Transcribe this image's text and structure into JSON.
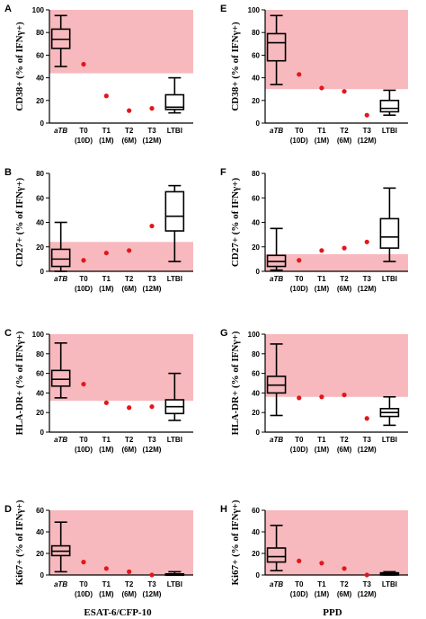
{
  "colors": {
    "band": "#f7b9bd",
    "point": "#e3161b",
    "box": "#000000"
  },
  "chart_data": [
    {
      "panel": "A",
      "type": "box",
      "ylabel": "CD38+ (% of IFNγ+)",
      "ylim": [
        0,
        100
      ],
      "yticks": [
        0,
        20,
        40,
        60,
        80,
        100
      ],
      "categories": [
        "aTB",
        "T0",
        "T1",
        "T2",
        "T3",
        "LTBI"
      ],
      "sublabels": [
        "",
        "(10D)",
        "(1M)",
        "(6M)",
        "(12M)",
        ""
      ],
      "band": [
        44,
        100
      ],
      "boxes": [
        {
          "index": 0,
          "min": 50,
          "q1": 66,
          "median": 74,
          "q3": 83,
          "max": 95
        },
        {
          "index": 5,
          "min": 9,
          "q1": 12,
          "median": 14,
          "q3": 25,
          "max": 40
        }
      ],
      "points": [
        {
          "index": 1,
          "value": 52
        },
        {
          "index": 2,
          "value": 24
        },
        {
          "index": 3,
          "value": 11
        },
        {
          "index": 4,
          "value": 13
        }
      ]
    },
    {
      "panel": "E",
      "type": "box",
      "ylabel": "CD38+ (% of IFNγ+)",
      "ylim": [
        0,
        100
      ],
      "yticks": [
        0,
        20,
        40,
        60,
        80,
        100
      ],
      "categories": [
        "aTB",
        "T0",
        "T1",
        "T2",
        "T3",
        "LTBI"
      ],
      "sublabels": [
        "",
        "(10D)",
        "(1M)",
        "(6M)",
        "(12M)",
        ""
      ],
      "band": [
        30,
        100
      ],
      "boxes": [
        {
          "index": 0,
          "min": 34,
          "q1": 55,
          "median": 71,
          "q3": 79,
          "max": 95
        },
        {
          "index": 5,
          "min": 7,
          "q1": 10,
          "median": 13,
          "q3": 20,
          "max": 29
        }
      ],
      "points": [
        {
          "index": 1,
          "value": 43
        },
        {
          "index": 2,
          "value": 31
        },
        {
          "index": 3,
          "value": 28
        },
        {
          "index": 4,
          "value": 7
        }
      ]
    },
    {
      "panel": "B",
      "type": "box",
      "ylabel": "CD27+ (% of IFNγ+)",
      "ylim": [
        0,
        80
      ],
      "yticks": [
        0,
        20,
        40,
        60,
        80
      ],
      "categories": [
        "aTB",
        "T0",
        "T1",
        "T2",
        "T3",
        "LTBI"
      ],
      "sublabels": [
        "",
        "(10D)",
        "(1M)",
        "(6M)",
        "(12M)",
        ""
      ],
      "band": [
        0,
        24
      ],
      "boxes": [
        {
          "index": 0,
          "min": 0,
          "q1": 4,
          "median": 10,
          "q3": 18,
          "max": 40
        },
        {
          "index": 5,
          "min": 8,
          "q1": 33,
          "median": 45,
          "q3": 65,
          "max": 70
        }
      ],
      "points": [
        {
          "index": 1,
          "value": 9
        },
        {
          "index": 2,
          "value": 15
        },
        {
          "index": 3,
          "value": 17
        },
        {
          "index": 4,
          "value": 37
        }
      ]
    },
    {
      "panel": "F",
      "type": "box",
      "ylabel": "CD27+ (% of IFNγ+)",
      "ylim": [
        0,
        80
      ],
      "yticks": [
        0,
        20,
        40,
        60,
        80
      ],
      "categories": [
        "aTB",
        "T0",
        "T1",
        "T2",
        "T3",
        "LTBI"
      ],
      "sublabels": [
        "",
        "(10D)",
        "(1M)",
        "(6M)",
        "(12M)",
        ""
      ],
      "band": [
        0,
        14
      ],
      "boxes": [
        {
          "index": 0,
          "min": 1,
          "q1": 4,
          "median": 8,
          "q3": 13,
          "max": 35
        },
        {
          "index": 5,
          "min": 8,
          "q1": 19,
          "median": 28,
          "q3": 43,
          "max": 68
        }
      ],
      "points": [
        {
          "index": 1,
          "value": 9
        },
        {
          "index": 2,
          "value": 17
        },
        {
          "index": 3,
          "value": 19
        },
        {
          "index": 4,
          "value": 24
        }
      ]
    },
    {
      "panel": "C",
      "type": "box",
      "ylabel": "HLA-DR+ (% of IFNγ+)",
      "ylim": [
        0,
        100
      ],
      "yticks": [
        0,
        20,
        40,
        60,
        80,
        100
      ],
      "categories": [
        "aTB",
        "T0",
        "T1",
        "T2",
        "T3",
        "LTBI"
      ],
      "sublabels": [
        "",
        "(10D)",
        "(1M)",
        "(6M)",
        "(12M)",
        ""
      ],
      "band": [
        32,
        100
      ],
      "boxes": [
        {
          "index": 0,
          "min": 35,
          "q1": 47,
          "median": 54,
          "q3": 63,
          "max": 91
        },
        {
          "index": 5,
          "min": 12,
          "q1": 19,
          "median": 26,
          "q3": 33,
          "max": 60
        }
      ],
      "points": [
        {
          "index": 1,
          "value": 49
        },
        {
          "index": 2,
          "value": 30
        },
        {
          "index": 3,
          "value": 25
        },
        {
          "index": 4,
          "value": 26
        }
      ]
    },
    {
      "panel": "G",
      "type": "box",
      "ylabel": "HLA-DR+ (% of IFNγ+)",
      "ylim": [
        0,
        100
      ],
      "yticks": [
        0,
        20,
        40,
        60,
        80,
        100
      ],
      "categories": [
        "aTB",
        "T0",
        "T1",
        "T2",
        "T3",
        "LTBI"
      ],
      "sublabels": [
        "",
        "(10D)",
        "(1M)",
        "(6M)",
        "(12M)",
        ""
      ],
      "band": [
        36,
        100
      ],
      "boxes": [
        {
          "index": 0,
          "min": 17,
          "q1": 40,
          "median": 48,
          "q3": 57,
          "max": 90
        },
        {
          "index": 5,
          "min": 7,
          "q1": 16,
          "median": 20,
          "q3": 24,
          "max": 36
        }
      ],
      "points": [
        {
          "index": 1,
          "value": 35
        },
        {
          "index": 2,
          "value": 36
        },
        {
          "index": 3,
          "value": 38
        },
        {
          "index": 4,
          "value": 14
        }
      ]
    },
    {
      "panel": "D",
      "type": "box",
      "ylabel": "Ki67+ (% of IFNγ+)",
      "ylim": [
        0,
        60
      ],
      "yticks": [
        0,
        20,
        40,
        60
      ],
      "categories": [
        "aTB",
        "T0",
        "T1",
        "T2",
        "T3",
        "LTBI"
      ],
      "sublabels": [
        "",
        "(10D)",
        "(1M)",
        "(6M)",
        "(12M)",
        ""
      ],
      "band": [
        0,
        60
      ],
      "boxes": [
        {
          "index": 0,
          "min": 3,
          "q1": 18,
          "median": 22,
          "q3": 27,
          "max": 49
        },
        {
          "index": 5,
          "min": 0,
          "q1": 0,
          "median": 1,
          "q3": 1,
          "max": 3
        }
      ],
      "points": [
        {
          "index": 1,
          "value": 12
        },
        {
          "index": 2,
          "value": 6
        },
        {
          "index": 3,
          "value": 3
        },
        {
          "index": 4,
          "value": 0
        }
      ]
    },
    {
      "panel": "H",
      "type": "box",
      "ylabel": "Ki67+ (% of IFNγ+)",
      "ylim": [
        0,
        60
      ],
      "yticks": [
        0,
        20,
        40,
        60
      ],
      "categories": [
        "aTB",
        "T0",
        "T1",
        "T2",
        "T3",
        "LTBI"
      ],
      "sublabels": [
        "",
        "(10D)",
        "(1M)",
        "(6M)",
        "(12M)",
        ""
      ],
      "band": [
        0,
        60
      ],
      "boxes": [
        {
          "index": 0,
          "min": 4,
          "q1": 12,
          "median": 17,
          "q3": 25,
          "max": 46
        },
        {
          "index": 5,
          "min": 0,
          "q1": 0,
          "median": 1,
          "q3": 2,
          "max": 3
        }
      ],
      "points": [
        {
          "index": 1,
          "value": 13
        },
        {
          "index": 2,
          "value": 11
        },
        {
          "index": 3,
          "value": 6
        },
        {
          "index": 4,
          "value": 0
        }
      ]
    }
  ],
  "column_titles": [
    "ESAT-6/CFP-10",
    "PPD"
  ]
}
